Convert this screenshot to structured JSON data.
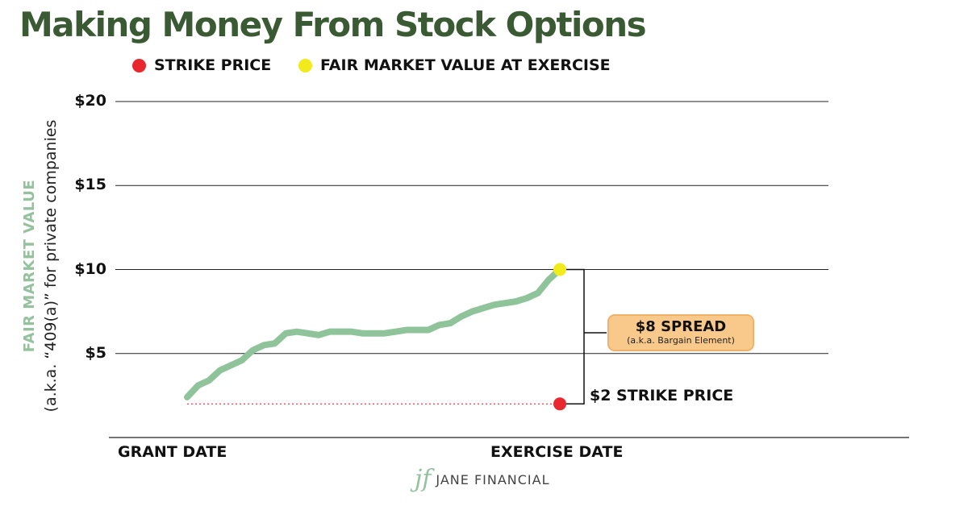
{
  "title": "Making Money From Stock Options",
  "brand": {
    "name": "JANE FINANCIAL",
    "logo_icon": "jf-monogram-icon"
  },
  "chart_data": {
    "type": "line",
    "yticks": [
      {
        "value": 20,
        "label": "$20"
      },
      {
        "value": 15,
        "label": "$15"
      },
      {
        "value": 10,
        "label": "$10"
      },
      {
        "value": 5,
        "label": "$5"
      }
    ],
    "ylim": [
      0,
      20
    ],
    "ylabel": "FAIR MARKET VALUE",
    "ylabel_sub": "(a.k.a. “409(a)” for private companies",
    "xtick_labels": [
      "GRANT DATE",
      "EXERCISE DATE"
    ],
    "legend": [
      {
        "label": "STRIKE PRICE",
        "color": "#e8282e"
      },
      {
        "label": "FAIR MARKET VALUE AT EXERCISE",
        "color": "#f2ea1a"
      }
    ],
    "series": [
      {
        "color": "#8fc49a",
        "values": [
          2.4,
          3.1,
          3.4,
          4.0,
          4.3,
          4.6,
          5.2,
          5.5,
          5.6,
          6.2,
          6.3,
          6.2,
          6.1,
          6.3,
          6.3,
          6.3,
          6.2,
          6.2,
          6.2,
          6.3,
          6.4,
          6.4,
          6.4,
          6.7,
          6.8,
          7.2,
          7.5,
          7.7,
          7.9,
          8.0,
          8.1,
          8.3,
          8.6,
          9.4,
          10.0
        ]
      }
    ],
    "strike_price": {
      "value": 2,
      "label": "$2 STRIKE PRICE",
      "color": "#e8282e"
    },
    "fmv_at_exercise": {
      "value": 10,
      "color": "#f2ea1a"
    },
    "spread": {
      "value": 8,
      "label": "$8 SPREAD",
      "sublabel": "(a.k.a. Bargain Element)",
      "color": "#f8c98b"
    },
    "grid": true
  }
}
